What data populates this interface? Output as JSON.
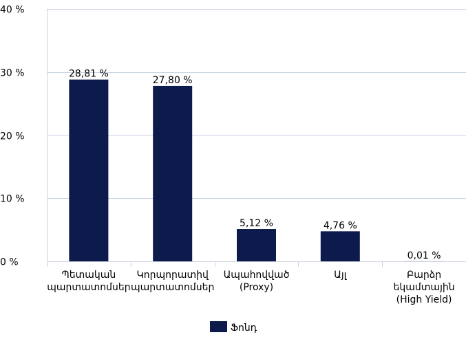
{
  "chart_data": {
    "type": "bar",
    "categories": [
      [
        "Պետական",
        "պարտատոմսեր"
      ],
      [
        "Կորպորատիվ",
        "պարտատոմսեր"
      ],
      [
        "Ապահովված",
        "(Proxy)"
      ],
      [
        "Այլ"
      ],
      [
        "Բարձր",
        "եկամտային",
        "(High Yield)"
      ]
    ],
    "series": [
      {
        "name": "Ֆոնդ",
        "color": "#0d1b4c",
        "values": [
          28.81,
          27.8,
          5.12,
          4.76,
          0.01
        ],
        "labels": [
          "28,81 %",
          "27,80 %",
          "5,12 %",
          "4,76 %",
          "0,01 %"
        ]
      }
    ],
    "ylim": [
      0,
      40
    ],
    "yticks": [
      0,
      10,
      20,
      30,
      40
    ],
    "ytick_labels": [
      "0 %",
      "10 %",
      "20 %",
      "30 %",
      "40 %"
    ],
    "grid": true,
    "gridline_color": "#c9d3e3",
    "legend_position": "bottom-center"
  }
}
